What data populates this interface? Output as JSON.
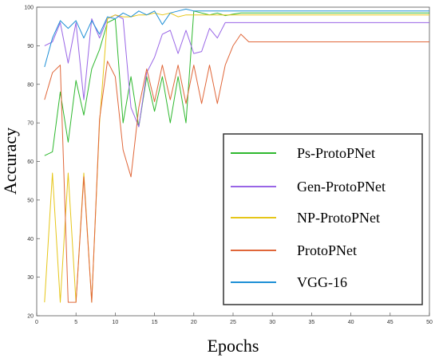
{
  "chart_data": {
    "type": "line",
    "title": "",
    "xlabel": "Epochs",
    "ylabel": "Accuracy",
    "xlim": [
      0,
      50
    ],
    "ylim": [
      20,
      100
    ],
    "xticks": [
      0,
      5,
      10,
      15,
      20,
      25,
      30,
      35,
      40,
      45,
      50
    ],
    "yticks": [
      20,
      30,
      40,
      50,
      60,
      70,
      80,
      90,
      100
    ],
    "grid": false,
    "legend_position": "lower-right",
    "series": [
      {
        "name": "Ps-ProtoPNet",
        "color": "#2eb82e",
        "x": [
          1,
          2,
          3,
          4,
          5,
          6,
          7,
          8,
          9,
          10,
          11,
          12,
          13,
          14,
          15,
          16,
          17,
          18,
          19,
          20,
          21,
          22,
          23,
          24,
          25,
          26,
          50
        ],
        "y": [
          61.5,
          62.5,
          78,
          65,
          81,
          72,
          84,
          89,
          96,
          97,
          70,
          82,
          69,
          82,
          73,
          82,
          70,
          82,
          70,
          99,
          98.5,
          98,
          98.5,
          97.8,
          98.2,
          98.5,
          98.5
        ]
      },
      {
        "name": "Gen-ProtoPNet",
        "color": "#9966e6",
        "x": [
          1,
          2,
          3,
          4,
          5,
          6,
          7,
          8,
          9,
          10,
          11,
          12,
          13,
          14,
          15,
          16,
          17,
          18,
          19,
          20,
          21,
          22,
          23,
          24,
          25,
          50
        ],
        "y": [
          90,
          91,
          96,
          85.5,
          96,
          76,
          97,
          92,
          97,
          98,
          97,
          74,
          69,
          83,
          87,
          93,
          94,
          88,
          94,
          88,
          88.5,
          94.5,
          92,
          96,
          96,
          96
        ]
      },
      {
        "name": "NP-ProtoPNet",
        "color": "#e6c619",
        "x": [
          1,
          2,
          3,
          4,
          5,
          6,
          7,
          8,
          9,
          10,
          11,
          12,
          13,
          14,
          15,
          16,
          17,
          18,
          19,
          20,
          25,
          50
        ],
        "y": [
          23.5,
          57,
          23.5,
          57,
          23.5,
          57,
          23.5,
          70,
          97,
          98,
          97.5,
          97.5,
          98,
          98,
          98.5,
          98,
          98.5,
          97.5,
          98,
          98,
          98,
          98
        ]
      },
      {
        "name": "ProtoPNet",
        "color": "#e0673a",
        "x": [
          1,
          2,
          3,
          4,
          5,
          6,
          7,
          8,
          9,
          10,
          11,
          12,
          13,
          14,
          15,
          16,
          17,
          18,
          19,
          20,
          21,
          22,
          23,
          24,
          25,
          26,
          27,
          50
        ],
        "y": [
          76,
          83,
          85,
          23.5,
          23.5,
          56,
          23.5,
          71,
          86,
          82,
          63,
          56,
          74,
          84,
          75.5,
          85,
          76,
          85,
          75,
          85,
          75,
          85,
          75,
          85,
          90,
          93,
          91,
          91
        ]
      },
      {
        "name": "VGG-16",
        "color": "#1e8fd6",
        "x": [
          1,
          2,
          3,
          4,
          5,
          6,
          7,
          8,
          9,
          10,
          11,
          12,
          13,
          14,
          15,
          16,
          17,
          18,
          19,
          20,
          21,
          22,
          23,
          24,
          25,
          26,
          27,
          50
        ],
        "y": [
          84.5,
          92,
          96.5,
          94.5,
          96.5,
          92,
          96.5,
          93,
          97.5,
          97,
          98.5,
          97.5,
          99,
          98,
          99,
          95.5,
          98.5,
          99,
          99.5,
          99,
          99,
          99,
          99,
          99,
          99,
          99,
          99,
          99
        ]
      }
    ]
  }
}
